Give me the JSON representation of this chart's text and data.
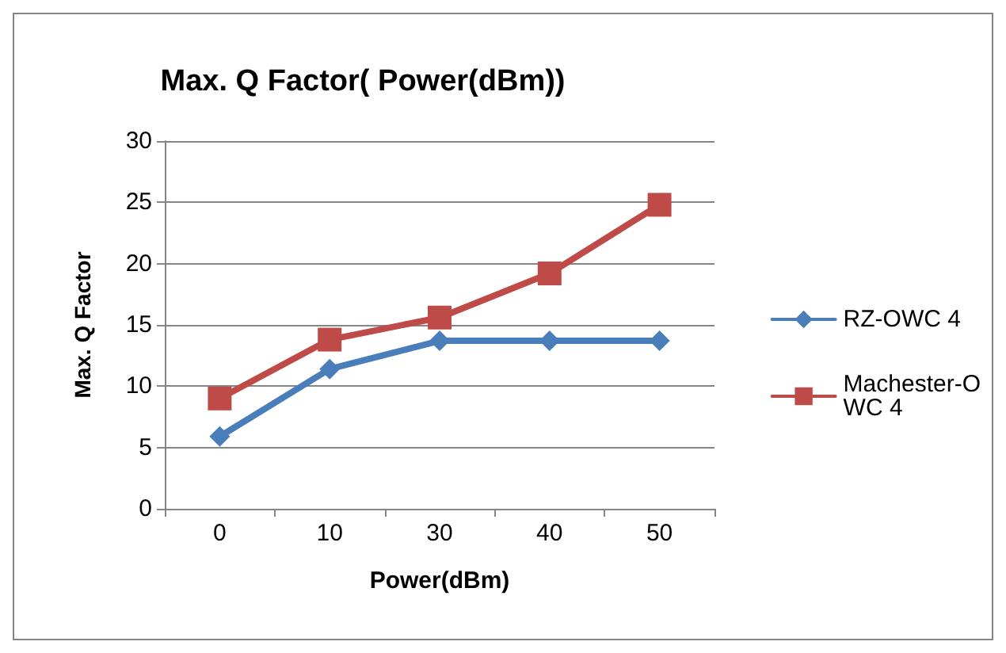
{
  "chart_data": {
    "type": "line",
    "title": "Max. Q Factor( Power(dBm))",
    "xlabel": "Power(dBm)",
    "ylabel": "Max. Q Factor",
    "categories": [
      "0",
      "10",
      "30",
      "40",
      "50"
    ],
    "series": [
      {
        "name": "RZ-OWC 4",
        "color": "#4a7ebb",
        "marker": "diamond",
        "values": [
          5.9,
          11.4,
          13.7,
          13.7,
          13.7
        ]
      },
      {
        "name": "Machester-OWC 4",
        "color": "#be4b48",
        "marker": "square",
        "values": [
          9.0,
          13.8,
          15.6,
          19.2,
          24.8
        ]
      }
    ],
    "ylim": [
      0,
      30
    ],
    "yticks": [
      0,
      5,
      10,
      15,
      20,
      25,
      30
    ],
    "grid": "y",
    "legend": "right",
    "line_style": "solid"
  }
}
